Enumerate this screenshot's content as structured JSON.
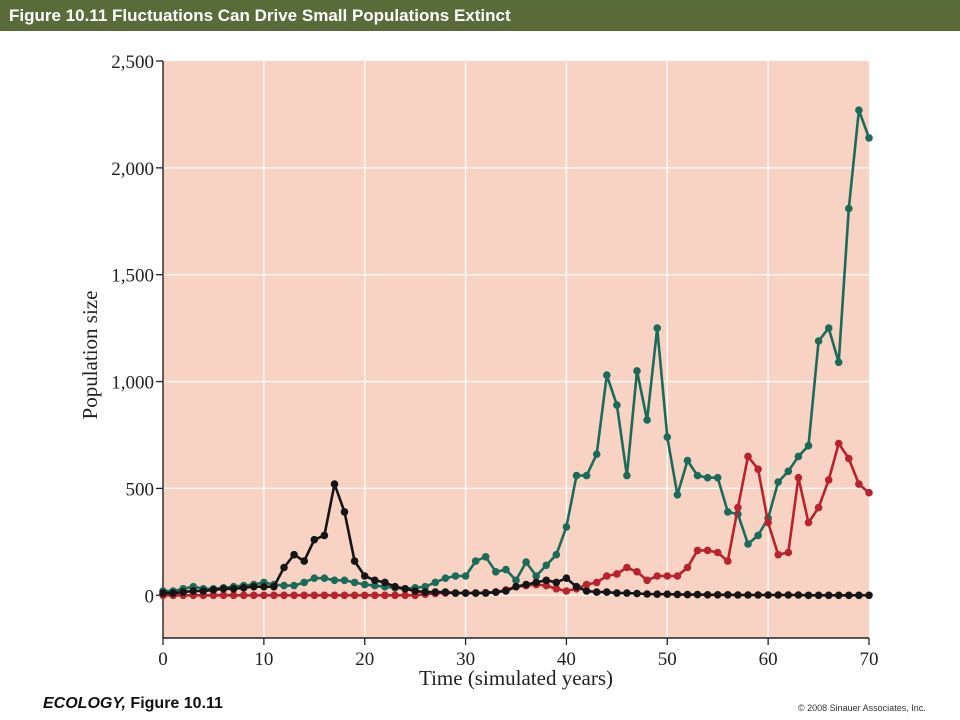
{
  "header": {
    "title": "Figure 10.11  Fluctuations Can Drive Small Populations Extinct"
  },
  "footer": {
    "book": "ECOLOGY,",
    "figure": " Figure 10.11",
    "copyright": "© 2008 Sinauer Associates, Inc."
  },
  "colors": {
    "header_bg": "#5a6b3a",
    "plot_bg": "#f8d3c3",
    "grid": "#ffffff"
  },
  "chart_data": {
    "type": "line",
    "xlabel": "Time (simulated years)",
    "ylabel": "Population size",
    "xlim": [
      0,
      70
    ],
    "ylim": [
      -200,
      2500
    ],
    "xticks": [
      "0",
      "10",
      "20",
      "30",
      "40",
      "50",
      "60",
      "70"
    ],
    "yticks": [
      "0",
      "500",
      "1,000",
      "1,500",
      "2,000",
      "2,500"
    ],
    "grid": true,
    "series": [
      {
        "color": "#1a6b59",
        "x": [
          0,
          1,
          2,
          3,
          4,
          5,
          6,
          7,
          8,
          9,
          10,
          11,
          12,
          13,
          14,
          15,
          16,
          17,
          18,
          19,
          20,
          21,
          22,
          23,
          24,
          25,
          26,
          27,
          28,
          29,
          30,
          31,
          32,
          33,
          34,
          35,
          36,
          37,
          38,
          39,
          40,
          41,
          42,
          43,
          44,
          45,
          46,
          47,
          48,
          49,
          50,
          51,
          52,
          53,
          54,
          55,
          56,
          57,
          58,
          59,
          60,
          61,
          62,
          63,
          64,
          65,
          66,
          67,
          68,
          69,
          70
        ],
        "y": [
          20,
          20,
          30,
          40,
          30,
          30,
          35,
          40,
          45,
          50,
          60,
          50,
          45,
          45,
          60,
          80,
          80,
          70,
          70,
          60,
          50,
          45,
          40,
          35,
          30,
          35,
          40,
          60,
          80,
          90,
          90,
          160,
          180,
          110,
          120,
          70,
          155,
          90,
          140,
          190,
          320,
          560,
          560,
          660,
          1030,
          890,
          560,
          1050,
          820,
          1250,
          740,
          470,
          630,
          560,
          550,
          550,
          390,
          380,
          240,
          280,
          360,
          530,
          580,
          650,
          700,
          1190,
          1250,
          1090,
          1810,
          2270,
          2140
        ]
      },
      {
        "color": "#b8232e",
        "x": [
          0,
          1,
          2,
          3,
          4,
          5,
          6,
          7,
          8,
          9,
          10,
          11,
          12,
          13,
          14,
          15,
          16,
          17,
          18,
          19,
          20,
          21,
          22,
          23,
          24,
          25,
          26,
          27,
          28,
          29,
          30,
          31,
          32,
          33,
          34,
          35,
          36,
          37,
          38,
          39,
          40,
          41,
          42,
          43,
          44,
          45,
          46,
          47,
          48,
          49,
          50,
          51,
          52,
          53,
          54,
          55,
          56,
          57,
          58,
          59,
          60,
          61,
          62,
          63,
          64,
          65,
          66,
          67,
          68,
          69,
          70
        ],
        "y": [
          0,
          0,
          0,
          0,
          0,
          0,
          0,
          0,
          0,
          0,
          0,
          0,
          0,
          0,
          0,
          0,
          0,
          0,
          0,
          0,
          0,
          0,
          0,
          0,
          0,
          0,
          5,
          8,
          10,
          10,
          10,
          10,
          12,
          15,
          25,
          40,
          45,
          50,
          45,
          30,
          20,
          30,
          50,
          60,
          90,
          100,
          130,
          110,
          70,
          90,
          90,
          90,
          130,
          210,
          210,
          200,
          160,
          410,
          650,
          590,
          340,
          190,
          200,
          550,
          340,
          410,
          540,
          710,
          640,
          520,
          480
        ]
      },
      {
        "color": "#151515",
        "x": [
          0,
          1,
          2,
          3,
          4,
          5,
          6,
          7,
          8,
          9,
          10,
          11,
          12,
          13,
          14,
          15,
          16,
          17,
          18,
          19,
          20,
          21,
          22,
          23,
          24,
          25,
          26,
          27,
          28,
          29,
          30,
          31,
          32,
          33,
          34,
          35,
          36,
          37,
          38,
          39,
          40,
          41,
          42,
          43,
          44,
          45,
          46,
          47,
          48,
          49,
          50,
          51,
          52,
          53,
          54,
          55,
          56,
          57,
          58,
          59,
          60,
          61,
          62,
          63,
          64,
          65,
          66,
          67,
          68,
          69,
          70
        ],
        "y": [
          10,
          10,
          15,
          20,
          20,
          25,
          30,
          30,
          35,
          40,
          40,
          40,
          130,
          190,
          160,
          260,
          280,
          520,
          390,
          160,
          90,
          70,
          60,
          40,
          30,
          20,
          15,
          15,
          15,
          10,
          10,
          10,
          10,
          15,
          20,
          40,
          50,
          60,
          70,
          60,
          80,
          40,
          20,
          15,
          15,
          10,
          10,
          8,
          6,
          5,
          5,
          4,
          3,
          3,
          2,
          2,
          2,
          1,
          1,
          1,
          1,
          1,
          1,
          1,
          0,
          0,
          0,
          0,
          0,
          0,
          0
        ]
      }
    ]
  }
}
